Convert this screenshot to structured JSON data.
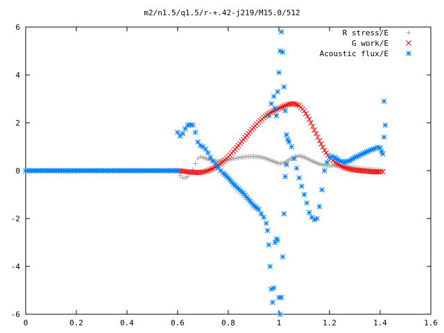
{
  "chart_data": {
    "type": "scatter",
    "title": "m2/n1.5/q1.5/r-+.42-j219/M15.0/512",
    "xlabel": "",
    "ylabel": "",
    "xlim": [
      0,
      1.6
    ],
    "ylim": [
      -6,
      6
    ],
    "x_ticks": [
      0,
      0.2,
      0.4,
      0.6,
      0.8,
      1,
      1.2,
      1.4,
      1.6
    ],
    "y_ticks": [
      -6,
      -4,
      -2,
      0,
      2,
      4,
      6
    ],
    "x_tick_labels": [
      "0",
      "0.2",
      "0.4",
      "0.6",
      "0.8",
      "1",
      "1.2",
      "1.4",
      "1.6"
    ],
    "y_tick_labels": [
      "-6",
      "-4",
      "-2",
      "0",
      "2",
      "4",
      "6"
    ],
    "grid": false,
    "legend_position": "top-right",
    "series": [
      {
        "name": "R stress/E",
        "marker": "plus",
        "color": "#a0a0a0",
        "points": [
          [
            0.6,
            0
          ],
          [
            0.61,
            -0.2
          ],
          [
            0.62,
            -0.3
          ],
          [
            0.63,
            -0.3
          ],
          [
            0.64,
            -0.25
          ],
          [
            0.65,
            -0.1
          ],
          [
            0.66,
            0.05
          ],
          [
            0.67,
            0.3
          ],
          [
            0.68,
            0.5
          ],
          [
            0.69,
            0.58
          ],
          [
            0.7,
            0.55
          ],
          [
            0.72,
            0.48
          ],
          [
            0.74,
            0.42
          ],
          [
            0.76,
            0.4
          ],
          [
            0.78,
            0.42
          ],
          [
            0.8,
            0.46
          ],
          [
            0.82,
            0.5
          ],
          [
            0.84,
            0.54
          ],
          [
            0.86,
            0.57
          ],
          [
            0.88,
            0.59
          ],
          [
            0.9,
            0.6
          ],
          [
            0.92,
            0.58
          ],
          [
            0.94,
            0.54
          ],
          [
            0.96,
            0.46
          ],
          [
            0.98,
            0.38
          ],
          [
            1.0,
            0.3
          ],
          [
            1.02,
            0.32
          ],
          [
            1.04,
            0.45
          ],
          [
            1.06,
            0.58
          ],
          [
            1.08,
            0.62
          ],
          [
            1.1,
            0.56
          ],
          [
            1.12,
            0.46
          ],
          [
            1.14,
            0.36
          ],
          [
            1.16,
            0.28
          ],
          [
            1.18,
            0.22
          ],
          [
            1.2,
            0.2
          ],
          [
            1.22,
            0.21
          ],
          [
            1.24,
            0.2
          ],
          [
            1.26,
            0.18
          ],
          [
            1.28,
            0.15
          ],
          [
            1.3,
            0.13
          ],
          [
            1.32,
            0.1
          ],
          [
            1.34,
            0.08
          ],
          [
            1.36,
            0.06
          ],
          [
            1.38,
            0.04
          ],
          [
            1.4,
            0.02
          ],
          [
            1.41,
            0.01
          ]
        ]
      },
      {
        "name": "G work/E",
        "marker": "cross",
        "color": "#ff0000",
        "points": [
          [
            0.6,
            0
          ],
          [
            0.62,
            -0.02
          ],
          [
            0.64,
            -0.05
          ],
          [
            0.66,
            -0.07
          ],
          [
            0.68,
            -0.08
          ],
          [
            0.7,
            -0.06
          ],
          [
            0.72,
            0.0
          ],
          [
            0.74,
            0.1
          ],
          [
            0.76,
            0.22
          ],
          [
            0.78,
            0.38
          ],
          [
            0.8,
            0.58
          ],
          [
            0.82,
            0.8
          ],
          [
            0.84,
            1.05
          ],
          [
            0.86,
            1.3
          ],
          [
            0.88,
            1.55
          ],
          [
            0.9,
            1.8
          ],
          [
            0.92,
            2.02
          ],
          [
            0.94,
            2.22
          ],
          [
            0.96,
            2.38
          ],
          [
            0.98,
            2.5
          ],
          [
            1.0,
            2.6
          ],
          [
            1.02,
            2.7
          ],
          [
            1.04,
            2.78
          ],
          [
            1.06,
            2.8
          ],
          [
            1.08,
            2.72
          ],
          [
            1.1,
            2.5
          ],
          [
            1.12,
            2.15
          ],
          [
            1.14,
            1.7
          ],
          [
            1.16,
            1.25
          ],
          [
            1.18,
            0.85
          ],
          [
            1.2,
            0.55
          ],
          [
            1.22,
            0.35
          ],
          [
            1.24,
            0.22
          ],
          [
            1.26,
            0.12
          ],
          [
            1.28,
            0.06
          ],
          [
            1.3,
            0.02
          ],
          [
            1.32,
            0.0
          ],
          [
            1.34,
            -0.02
          ],
          [
            1.36,
            -0.04
          ],
          [
            1.38,
            -0.05
          ],
          [
            1.4,
            -0.05
          ],
          [
            1.41,
            -0.04
          ]
        ]
      },
      {
        "name": "Acoustic flux/E",
        "marker": "star",
        "color": "#0080ff",
        "points": [
          [
            0.6,
            1.6
          ],
          [
            0.61,
            1.45
          ],
          [
            0.62,
            1.55
          ],
          [
            0.63,
            1.75
          ],
          [
            0.64,
            1.9
          ],
          [
            0.65,
            1.92
          ],
          [
            0.66,
            1.9
          ],
          [
            0.67,
            1.6
          ],
          [
            0.68,
            1.2
          ],
          [
            0.69,
            1.05
          ],
          [
            0.7,
            1.0
          ],
          [
            0.71,
            0.9
          ],
          [
            0.72,
            0.75
          ],
          [
            0.73,
            0.55
          ],
          [
            0.74,
            0.4
          ],
          [
            0.75,
            0.28
          ],
          [
            0.76,
            0.12
          ],
          [
            0.77,
            0.0
          ],
          [
            0.78,
            -0.1
          ],
          [
            0.8,
            -0.3
          ],
          [
            0.82,
            -0.55
          ],
          [
            0.84,
            -0.75
          ],
          [
            0.86,
            -0.95
          ],
          [
            0.88,
            -1.2
          ],
          [
            0.9,
            -1.45
          ],
          [
            0.92,
            -1.62
          ],
          [
            0.93,
            -1.8
          ],
          [
            0.94,
            -1.95
          ],
          [
            0.95,
            -2.2
          ],
          [
            0.955,
            -2.5
          ],
          [
            0.96,
            -3.1
          ],
          [
            0.965,
            -4.0
          ],
          [
            0.97,
            -4.95
          ],
          [
            0.975,
            -5.5
          ],
          [
            0.98,
            -4.9
          ],
          [
            0.985,
            -3.0
          ],
          [
            0.99,
            -2.85
          ],
          [
            0.995,
            -2.9
          ],
          [
            1.0,
            -5.3
          ],
          [
            1.005,
            -6.0
          ],
          [
            1.01,
            -5.3
          ],
          [
            1.015,
            -3.6
          ],
          [
            1.02,
            -1.8
          ],
          [
            1.025,
            -0.25
          ],
          [
            1.03,
            0.25
          ],
          [
            0.96,
            2.3
          ],
          [
            0.97,
            2.8
          ],
          [
            0.98,
            3.1
          ],
          [
            0.985,
            2.6
          ],
          [
            0.99,
            2.3
          ],
          [
            0.995,
            3.3
          ],
          [
            1.0,
            4.1
          ],
          [
            1.005,
            5.0
          ],
          [
            1.01,
            5.8
          ],
          [
            1.015,
            4.95
          ],
          [
            1.02,
            3.5
          ],
          [
            1.025,
            2.5
          ],
          [
            1.03,
            1.5
          ],
          [
            1.035,
            1.3
          ],
          [
            1.04,
            1.2
          ],
          [
            1.05,
            1.0
          ],
          [
            1.06,
            0.5
          ],
          [
            1.07,
            0.1
          ],
          [
            1.08,
            -0.3
          ],
          [
            1.09,
            -0.65
          ],
          [
            1.1,
            -1.0
          ],
          [
            1.11,
            -1.35
          ],
          [
            1.12,
            -1.75
          ],
          [
            1.13,
            -1.95
          ],
          [
            1.14,
            -2.05
          ],
          [
            1.15,
            -2.0
          ],
          [
            1.16,
            -1.5
          ],
          [
            1.17,
            -0.8
          ],
          [
            1.18,
            0.0
          ],
          [
            1.19,
            0.35
          ],
          [
            1.2,
            0.55
          ],
          [
            1.21,
            0.6
          ],
          [
            1.22,
            0.55
          ],
          [
            1.24,
            0.4
          ],
          [
            1.26,
            0.35
          ],
          [
            1.28,
            0.42
          ],
          [
            1.3,
            0.55
          ],
          [
            1.32,
            0.65
          ],
          [
            1.34,
            0.75
          ],
          [
            1.36,
            0.85
          ],
          [
            1.38,
            0.93
          ],
          [
            1.39,
            0.98
          ],
          [
            1.4,
            0.95
          ],
          [
            1.405,
            0.8
          ],
          [
            1.41,
            0.7
          ],
          [
            1.415,
            1.4
          ],
          [
            1.42,
            1.9
          ],
          [
            1.415,
            2.9
          ]
        ]
      },
      {
        "name": "",
        "marker": "star",
        "color": "#0080ff",
        "points": [
          [
            0.0,
            0
          ],
          [
            0.05,
            0
          ],
          [
            0.1,
            0
          ],
          [
            0.15,
            0
          ],
          [
            0.2,
            0
          ],
          [
            0.25,
            0
          ],
          [
            0.3,
            0
          ],
          [
            0.35,
            0
          ],
          [
            0.4,
            0
          ],
          [
            0.45,
            0
          ],
          [
            0.5,
            0
          ],
          [
            0.55,
            0
          ],
          [
            0.6,
            0
          ]
        ]
      }
    ]
  }
}
